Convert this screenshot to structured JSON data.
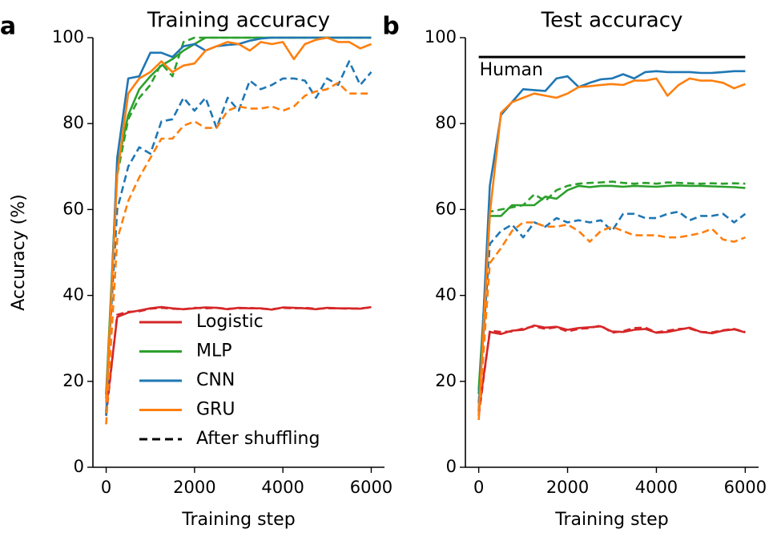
{
  "chart_data": [
    {
      "type": "line",
      "panel_label": "a",
      "title": "Training accuracy",
      "xlabel": "Training step",
      "ylabel": "Accuracy (%)",
      "xlim": [
        -300,
        6300
      ],
      "ylim": [
        0,
        100
      ],
      "xticks": [
        0,
        2000,
        4000,
        6000
      ],
      "yticks": [
        0,
        20,
        40,
        60,
        80,
        100
      ],
      "grid": false,
      "legend": {
        "placement": "lower-right",
        "entries": [
          {
            "label": "Logistic",
            "color": "#d62728",
            "style": "solid"
          },
          {
            "label": "MLP",
            "color": "#2ca02c",
            "style": "solid"
          },
          {
            "label": "CNN",
            "color": "#1f77b4",
            "style": "solid"
          },
          {
            "label": "GRU",
            "color": "#ff7f0e",
            "style": "solid"
          },
          {
            "label": "After shuffling",
            "color": "#000000",
            "style": "dashed"
          }
        ]
      },
      "series": [
        {
          "name": "Logistic",
          "color": "#d62728",
          "dashed": false,
          "x": [
            0,
            250,
            500,
            750,
            1000,
            1250,
            1500,
            1750,
            2000,
            2250,
            2500,
            2750,
            3000,
            3250,
            3500,
            3750,
            4000,
            4250,
            4500,
            4750,
            5000,
            5250,
            5500,
            5750,
            6000
          ],
          "y": [
            13,
            35,
            36,
            36.5,
            37,
            37.3,
            37,
            36.8,
            37,
            37.2,
            37.1,
            36.8,
            37.1,
            37,
            37,
            36.7,
            37.2,
            37.1,
            37,
            36.8,
            37.1,
            37,
            37,
            36.9,
            37.3
          ]
        },
        {
          "name": "Logistic (shuffled)",
          "color": "#d62728",
          "dashed": true,
          "x": [
            0,
            250,
            500,
            750,
            1000,
            1250,
            1500,
            1750,
            2000,
            2250,
            2500,
            2750,
            3000,
            3250,
            3500,
            3750,
            4000,
            4250,
            4500,
            4750,
            5000,
            5250,
            5500,
            5750,
            6000
          ],
          "y": [
            12,
            35.5,
            36.2,
            36.3,
            36.9,
            37.1,
            36.9,
            36.8,
            37.1,
            37,
            37.1,
            36.9,
            37,
            37.1,
            36.9,
            36.8,
            37.1,
            37,
            37.1,
            36.9,
            37,
            37,
            36.9,
            37,
            37.2
          ]
        },
        {
          "name": "MLP",
          "color": "#2ca02c",
          "dashed": false,
          "x": [
            0,
            250,
            500,
            750,
            1000,
            1250,
            1500,
            1750,
            2000,
            2250,
            2500,
            2750,
            3000,
            3250,
            3500,
            3750,
            4000,
            4250,
            4500,
            4750,
            5000,
            5250,
            5500,
            5750,
            6000
          ],
          "y": [
            17,
            70,
            82,
            88,
            91,
            93.5,
            95,
            97,
            98.5,
            100,
            100,
            100,
            100,
            100,
            100,
            100,
            100,
            100,
            100,
            100,
            100,
            100,
            100,
            100,
            100
          ]
        },
        {
          "name": "MLP (shuffled)",
          "color": "#2ca02c",
          "dashed": true,
          "x": [
            0,
            250,
            500,
            750,
            1000,
            1250,
            1500,
            1750,
            2000,
            2250,
            2500,
            2750,
            3000,
            3250,
            3500,
            3750,
            4000,
            4250,
            4500,
            4750,
            5000,
            5250,
            5500,
            5750,
            6000
          ],
          "y": [
            16,
            68,
            81,
            86,
            89,
            94,
            91,
            99,
            100,
            100,
            100,
            100,
            100,
            100,
            100,
            100,
            100,
            100,
            100,
            100,
            100,
            100,
            100,
            100,
            100
          ]
        },
        {
          "name": "CNN",
          "color": "#1f77b4",
          "dashed": false,
          "x": [
            0,
            250,
            500,
            750,
            1000,
            1250,
            1500,
            1750,
            2000,
            2250,
            2500,
            2750,
            3000,
            3250,
            3500,
            3750,
            4000,
            4250,
            4500,
            4750,
            5000,
            5250,
            5500,
            5750,
            6000
          ],
          "y": [
            12,
            72,
            90.5,
            91,
            96.5,
            96.5,
            95.5,
            98,
            98.5,
            97,
            98,
            98.3,
            98.5,
            99.3,
            99.8,
            100,
            100,
            100,
            100,
            100,
            100,
            100,
            100,
            100,
            100
          ]
        },
        {
          "name": "CNN (shuffled)",
          "color": "#1f77b4",
          "dashed": true,
          "x": [
            0,
            250,
            500,
            750,
            1000,
            1250,
            1500,
            1750,
            2000,
            2250,
            2500,
            2750,
            3000,
            3250,
            3500,
            3750,
            4000,
            4250,
            4500,
            4750,
            5000,
            5250,
            5500,
            5750,
            6000
          ],
          "y": [
            17,
            60,
            70,
            74.5,
            73,
            80.5,
            81,
            86,
            83,
            86,
            79,
            86,
            83,
            90,
            88,
            89,
            90.5,
            90.5,
            90,
            86,
            90.5,
            89,
            94.5,
            89,
            92
          ]
        },
        {
          "name": "GRU",
          "color": "#ff7f0e",
          "dashed": false,
          "x": [
            0,
            250,
            500,
            750,
            1000,
            1250,
            1500,
            1750,
            2000,
            2250,
            2500,
            2750,
            3000,
            3250,
            3500,
            3750,
            4000,
            4250,
            4500,
            4750,
            5000,
            5250,
            5500,
            5750,
            6000
          ],
          "y": [
            15,
            68,
            87,
            90.5,
            92,
            94.5,
            92,
            93.5,
            94,
            97,
            98,
            99,
            98.5,
            97,
            99,
            98.5,
            99,
            95,
            98.5,
            99.5,
            100,
            99,
            99,
            97.5,
            98.5
          ]
        },
        {
          "name": "GRU (shuffled)",
          "color": "#ff7f0e",
          "dashed": true,
          "x": [
            0,
            250,
            500,
            750,
            1000,
            1250,
            1500,
            1750,
            2000,
            2250,
            2500,
            2750,
            3000,
            3250,
            3500,
            3750,
            4000,
            4250,
            4500,
            4750,
            5000,
            5250,
            5500,
            5750,
            6000
          ],
          "y": [
            10,
            53,
            62,
            67.5,
            72,
            76.5,
            76.5,
            79.5,
            80.5,
            79,
            79,
            83,
            84,
            83.5,
            83.5,
            84,
            83,
            84,
            86.5,
            87.5,
            88,
            89.5,
            87,
            87,
            87
          ]
        }
      ]
    },
    {
      "type": "line",
      "panel_label": "b",
      "title": "Test accuracy",
      "xlabel": "Training step",
      "ylabel": "",
      "xlim": [
        -300,
        6300
      ],
      "ylim": [
        0,
        100
      ],
      "xticks": [
        0,
        2000,
        4000,
        6000
      ],
      "yticks": [
        0,
        20,
        40,
        60,
        80,
        100
      ],
      "grid": false,
      "reference_line": {
        "label": "Human",
        "y": 95.5,
        "x": [
          0,
          6000
        ],
        "color": "#000000"
      },
      "series": [
        {
          "name": "Logistic",
          "color": "#d62728",
          "dashed": false,
          "x": [
            0,
            250,
            500,
            750,
            1000,
            1250,
            1500,
            1750,
            2000,
            2250,
            2500,
            2750,
            3000,
            3250,
            3500,
            3750,
            4000,
            4250,
            4500,
            4750,
            5000,
            5250,
            5500,
            5750,
            6000
          ],
          "y": [
            13,
            31.5,
            31,
            31.8,
            32,
            33,
            32.5,
            32.7,
            32,
            32.4,
            32.6,
            32.8,
            31.6,
            31.5,
            32,
            32.2,
            31.3,
            31.5,
            32,
            32.5,
            31.5,
            31.2,
            31.8,
            32.1,
            31.4
          ]
        },
        {
          "name": "Logistic (shuffled)",
          "color": "#d62728",
          "dashed": true,
          "x": [
            0,
            250,
            500,
            750,
            1000,
            1250,
            1500,
            1750,
            2000,
            2250,
            2500,
            2750,
            3000,
            3250,
            3500,
            3750,
            4000,
            4250,
            4500,
            4750,
            5000,
            5250,
            5500,
            5750,
            6000
          ],
          "y": [
            12,
            31.8,
            31.5,
            31.6,
            32.3,
            32.8,
            32.2,
            32.6,
            31.6,
            32.2,
            32.4,
            33,
            31.3,
            31.7,
            32.4,
            32.5,
            31.4,
            31.8,
            32.2,
            32.3,
            31.5,
            31.4,
            31.9,
            32.2,
            31.5
          ]
        },
        {
          "name": "MLP",
          "color": "#2ca02c",
          "dashed": false,
          "x": [
            0,
            250,
            500,
            750,
            1000,
            1250,
            1500,
            1750,
            2000,
            2250,
            2500,
            2750,
            3000,
            3250,
            3500,
            3750,
            4000,
            4250,
            4500,
            4750,
            5000,
            5250,
            5500,
            5750,
            6000
          ],
          "y": [
            18,
            58.5,
            58.5,
            61,
            61,
            61,
            63,
            62.5,
            64.5,
            65.5,
            65.2,
            65.5,
            65.5,
            65.3,
            65.5,
            65.4,
            65.3,
            65.5,
            65.6,
            65.5,
            65.5,
            65.4,
            65.3,
            65.2,
            65
          ]
        },
        {
          "name": "MLP (shuffled)",
          "color": "#2ca02c",
          "dashed": true,
          "x": [
            0,
            250,
            500,
            750,
            1000,
            1250,
            1500,
            1750,
            2000,
            2250,
            2500,
            2750,
            3000,
            3250,
            3500,
            3750,
            4000,
            4250,
            4500,
            4750,
            5000,
            5250,
            5500,
            5750,
            6000
          ],
          "y": [
            17,
            59.5,
            60,
            60.5,
            61,
            63.5,
            62,
            64.5,
            65.5,
            66,
            66.2,
            66.3,
            66.5,
            66.2,
            66,
            66.2,
            66,
            66.3,
            66.2,
            66.1,
            66,
            66.1,
            66,
            66.1,
            66
          ]
        },
        {
          "name": "CNN",
          "color": "#1f77b4",
          "dashed": false,
          "x": [
            0,
            250,
            500,
            750,
            1000,
            1250,
            1500,
            1750,
            2000,
            2250,
            2500,
            2750,
            3000,
            3250,
            3500,
            3750,
            4000,
            4250,
            4500,
            4750,
            5000,
            5250,
            5500,
            5750,
            6000
          ],
          "y": [
            13,
            65.5,
            82,
            85,
            88,
            87.8,
            87.6,
            90.5,
            91,
            88.5,
            89.5,
            90.3,
            90.5,
            91.5,
            90.5,
            92,
            92.2,
            92,
            92,
            92,
            91.8,
            91.8,
            92,
            92.2,
            92.2
          ]
        },
        {
          "name": "CNN (shuffled)",
          "color": "#1f77b4",
          "dashed": true,
          "x": [
            0,
            250,
            500,
            750,
            1000,
            1250,
            1500,
            1750,
            2000,
            2250,
            2500,
            2750,
            3000,
            3250,
            3500,
            3750,
            4000,
            4250,
            4500,
            4750,
            5000,
            5250,
            5500,
            5750,
            6000
          ],
          "y": [
            15,
            52,
            55,
            56.5,
            53.5,
            57,
            56,
            58,
            57,
            57.5,
            57,
            57.5,
            55,
            59,
            59,
            58,
            58,
            59,
            59.5,
            57.5,
            58.5,
            58.5,
            59,
            57,
            59
          ]
        },
        {
          "name": "GRU",
          "color": "#ff7f0e",
          "dashed": false,
          "x": [
            0,
            250,
            500,
            750,
            1000,
            1250,
            1500,
            1750,
            2000,
            2250,
            2500,
            2750,
            3000,
            3250,
            3500,
            3750,
            4000,
            4250,
            4500,
            4750,
            5000,
            5250,
            5500,
            5750,
            6000
          ],
          "y": [
            12,
            59,
            82.5,
            85,
            86,
            87,
            86.5,
            86,
            87,
            88.5,
            88.7,
            89,
            89.2,
            89,
            90,
            90,
            90.5,
            86.5,
            89,
            90.5,
            90,
            90,
            89.5,
            88.2,
            89.2
          ]
        },
        {
          "name": "GRU (shuffled)",
          "color": "#ff7f0e",
          "dashed": true,
          "x": [
            0,
            250,
            500,
            750,
            1000,
            1250,
            1500,
            1750,
            2000,
            2250,
            2500,
            2750,
            3000,
            3250,
            3500,
            3750,
            4000,
            4250,
            4500,
            4750,
            5000,
            5250,
            5500,
            5750,
            6000
          ],
          "y": [
            11,
            47.5,
            51,
            55,
            57,
            57,
            56,
            56,
            56.5,
            55,
            52.5,
            55,
            56,
            55,
            54,
            54,
            54,
            53.5,
            53.5,
            54,
            54.5,
            55.5,
            53,
            52.5,
            53.5
          ]
        }
      ]
    }
  ]
}
